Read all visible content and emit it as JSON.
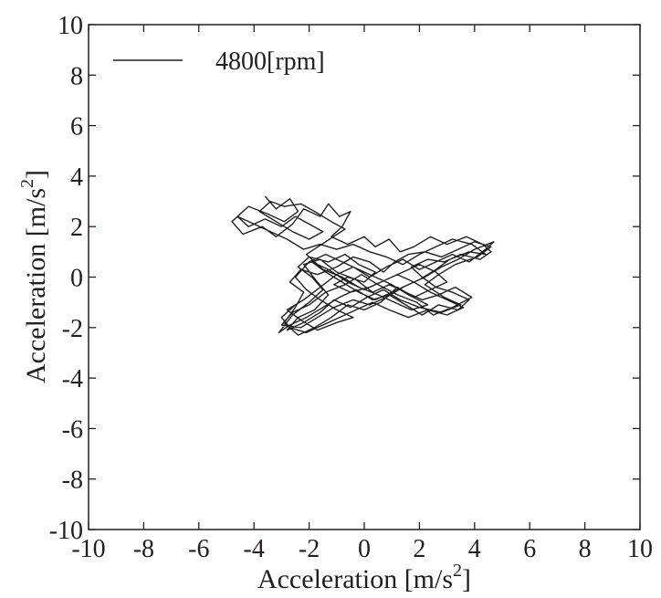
{
  "chart_data": {
    "type": "line",
    "title": "",
    "xlabel": {
      "text": "Acceleration [m/s",
      "sup": "2",
      "close": "]"
    },
    "ylabel": {
      "text": "Acceleration [m/s",
      "sup": "2",
      "close": "]"
    },
    "xlim": [
      -10,
      10
    ],
    "ylim": [
      -10,
      10
    ],
    "xticks": [
      -10,
      -8,
      -6,
      -4,
      -2,
      0,
      2,
      4,
      6,
      8,
      10
    ],
    "yticks": [
      -10,
      -8,
      -6,
      -4,
      -2,
      0,
      2,
      4,
      6,
      8,
      10
    ],
    "grid": false,
    "legend_position": "top-left",
    "series": [
      {
        "name": "4800[rpm]",
        "color": "#231f20",
        "points": [
          [
            -3.6,
            3.2
          ],
          [
            -3.2,
            2.7
          ],
          [
            -2.7,
            3.1
          ],
          [
            -2.4,
            2.6
          ],
          [
            -2.9,
            2.2
          ],
          [
            -3.5,
            2.5
          ],
          [
            -4.2,
            2.8
          ],
          [
            -4.8,
            2.2
          ],
          [
            -4.4,
            1.7
          ],
          [
            -3.7,
            2.0
          ],
          [
            -3.2,
            1.6
          ],
          [
            -2.6,
            2.1
          ],
          [
            -2.2,
            2.7
          ],
          [
            -1.6,
            2.4
          ],
          [
            -1.3,
            2.9
          ],
          [
            -0.9,
            2.4
          ],
          [
            -0.5,
            2.6
          ],
          [
            -0.8,
            2.0
          ],
          [
            -1.2,
            1.6
          ],
          [
            -0.6,
            1.3
          ],
          [
            0.0,
            1.6
          ],
          [
            0.4,
            1.2
          ],
          [
            0.9,
            1.5
          ],
          [
            1.3,
            1.0
          ],
          [
            1.8,
            1.2
          ],
          [
            2.4,
            1.6
          ],
          [
            3.0,
            1.3
          ],
          [
            3.7,
            1.6
          ],
          [
            4.3,
            1.3
          ],
          [
            4.6,
            1.0
          ],
          [
            4.2,
            0.7
          ],
          [
            3.5,
            0.9
          ],
          [
            2.9,
            0.6
          ],
          [
            2.3,
            0.7
          ],
          [
            1.7,
            0.4
          ],
          [
            2.1,
            0.0
          ],
          [
            2.6,
            -0.4
          ],
          [
            3.2,
            -0.6
          ],
          [
            3.8,
            -0.9
          ],
          [
            3.4,
            -1.3
          ],
          [
            2.7,
            -1.1
          ],
          [
            2.1,
            -1.5
          ],
          [
            1.5,
            -1.1
          ],
          [
            0.9,
            -0.7
          ],
          [
            0.3,
            -0.9
          ],
          [
            -0.3,
            -0.5
          ],
          [
            -0.9,
            -0.8
          ],
          [
            -1.5,
            -1.2
          ],
          [
            -2.1,
            -1.6
          ],
          [
            -2.7,
            -1.9
          ],
          [
            -3.1,
            -2.2
          ],
          [
            -2.6,
            -1.5
          ],
          [
            -2.0,
            -1.0
          ],
          [
            -1.5,
            -0.5
          ],
          [
            -1.9,
            0.0
          ],
          [
            -2.4,
            0.4
          ],
          [
            -2.0,
            0.8
          ],
          [
            -1.3,
            0.6
          ],
          [
            -0.7,
            0.9
          ],
          [
            -0.2,
            0.5
          ],
          [
            0.4,
            0.2
          ],
          [
            0.0,
            -0.2
          ],
          [
            -0.6,
            0.0
          ],
          [
            -1.1,
            -0.3
          ],
          [
            -0.5,
            -0.6
          ],
          [
            0.2,
            -0.4
          ],
          [
            0.8,
            -0.1
          ],
          [
            1.4,
            0.2
          ],
          [
            2.0,
            0.5
          ],
          [
            2.6,
            0.2
          ],
          [
            3.0,
            -0.2
          ],
          [
            2.4,
            -0.5
          ],
          [
            1.8,
            -0.8
          ],
          [
            1.2,
            -0.4
          ],
          [
            0.6,
            -1.0
          ],
          [
            0.0,
            -1.3
          ],
          [
            -0.6,
            -1.1
          ],
          [
            -1.2,
            -1.6
          ],
          [
            -1.8,
            -2.0
          ],
          [
            -2.4,
            -2.3
          ],
          [
            -2.9,
            -1.8
          ],
          [
            -2.5,
            -1.2
          ],
          [
            -2.2,
            -0.6
          ],
          [
            -2.7,
            -0.2
          ],
          [
            -2.3,
            0.3
          ],
          [
            -1.7,
            0.1
          ],
          [
            -1.0,
            0.4
          ],
          [
            -0.4,
            0.8
          ],
          [
            0.2,
            0.6
          ],
          [
            0.7,
            0.2
          ],
          [
            1.1,
            0.6
          ],
          [
            1.6,
            0.9
          ],
          [
            2.2,
            1.0
          ],
          [
            2.8,
            0.8
          ],
          [
            3.4,
            1.1
          ],
          [
            4.0,
            1.4
          ],
          [
            4.6,
            1.2
          ],
          [
            4.1,
            0.8
          ],
          [
            3.3,
            0.5
          ],
          [
            2.7,
            0.1
          ],
          [
            2.2,
            -0.3
          ],
          [
            2.9,
            -0.8
          ],
          [
            3.5,
            -1.1
          ],
          [
            2.8,
            -1.4
          ],
          [
            2.0,
            -1.2
          ],
          [
            1.3,
            -0.9
          ],
          [
            0.7,
            -0.5
          ],
          [
            0.1,
            -0.8
          ],
          [
            -0.5,
            -1.2
          ],
          [
            -1.1,
            -0.9
          ],
          [
            -1.6,
            -1.4
          ],
          [
            -2.2,
            -1.8
          ],
          [
            -2.8,
            -2.1
          ],
          [
            -2.4,
            -1.6
          ],
          [
            -1.8,
            -1.3
          ],
          [
            -1.3,
            -0.7
          ],
          [
            -1.7,
            -0.2
          ],
          [
            -2.2,
            0.5
          ],
          [
            -1.6,
            0.7
          ],
          [
            -1.0,
            0.2
          ],
          [
            -0.3,
            -0.1
          ],
          [
            0.3,
            -0.6
          ],
          [
            0.9,
            -0.3
          ],
          [
            1.5,
            -0.6
          ],
          [
            2.1,
            -0.9
          ],
          [
            2.7,
            -0.7
          ],
          [
            3.3,
            -0.4
          ],
          [
            3.9,
            -0.8
          ],
          [
            3.2,
            -1.2
          ],
          [
            2.5,
            -1.5
          ],
          [
            1.9,
            -1.0
          ],
          [
            1.2,
            -0.7
          ],
          [
            0.5,
            -0.3
          ],
          [
            -0.1,
            0.1
          ],
          [
            -0.7,
            -0.3
          ],
          [
            -1.4,
            -0.6
          ],
          [
            -2.0,
            -1.1
          ],
          [
            -2.6,
            -1.4
          ],
          [
            -3.0,
            -1.9
          ],
          [
            -2.3,
            -2.0
          ],
          [
            -1.7,
            -1.6
          ],
          [
            -1.1,
            -1.2
          ],
          [
            -0.4,
            -0.9
          ],
          [
            0.2,
            -1.1
          ],
          [
            0.8,
            -0.8
          ],
          [
            1.4,
            -0.4
          ],
          [
            2.0,
            -0.1
          ],
          [
            2.6,
            0.3
          ],
          [
            3.1,
            0.7
          ],
          [
            3.8,
            1.0
          ],
          [
            4.4,
            0.9
          ],
          [
            3.9,
            1.3
          ],
          [
            3.2,
            1.5
          ],
          [
            2.6,
            1.2
          ],
          [
            2.0,
            0.9
          ],
          [
            1.4,
            0.5
          ],
          [
            0.8,
            0.8
          ],
          [
            0.2,
            1.0
          ],
          [
            -0.4,
            1.3
          ],
          [
            -1.0,
            1.1
          ],
          [
            -1.6,
            1.3
          ],
          [
            -2.2,
            1.1
          ],
          [
            -2.8,
            1.5
          ],
          [
            -3.4,
            1.8
          ],
          [
            -4.0,
            2.1
          ],
          [
            -4.6,
            2.4
          ],
          [
            -4.2,
            2.0
          ],
          [
            -3.6,
            2.3
          ],
          [
            -3.0,
            2.0
          ],
          [
            -2.5,
            2.4
          ],
          [
            -2.0,
            2.1
          ],
          [
            -1.5,
            1.8
          ],
          [
            -2.0,
            1.5
          ],
          [
            -2.6,
            1.8
          ],
          [
            -3.2,
            2.2
          ],
          [
            -3.8,
            2.6
          ],
          [
            -3.4,
            3.0
          ],
          [
            -2.9,
            2.8
          ],
          [
            -2.3,
            2.9
          ],
          [
            -1.8,
            2.6
          ],
          [
            -1.2,
            2.2
          ],
          [
            -0.7,
            1.9
          ],
          [
            -1.4,
            1.4
          ],
          [
            -2.1,
            0.9
          ],
          [
            -1.5,
            0.3
          ],
          [
            -0.8,
            0.0
          ],
          [
            -0.2,
            -0.4
          ],
          [
            0.5,
            -0.7
          ],
          [
            1.1,
            -1.0
          ],
          [
            1.7,
            -1.3
          ],
          [
            2.3,
            -1.1
          ],
          [
            1.6,
            -0.7
          ],
          [
            1.0,
            -0.3
          ],
          [
            0.4,
            0.0
          ],
          [
            -0.2,
            0.3
          ],
          [
            -0.8,
            0.6
          ],
          [
            -1.4,
            0.9
          ],
          [
            -2.0,
            0.6
          ],
          [
            -2.5,
            0.0
          ],
          [
            -2.1,
            -0.5
          ],
          [
            -1.6,
            -0.9
          ],
          [
            -1.0,
            -1.3
          ],
          [
            -0.4,
            -1.6
          ],
          [
            -1.0,
            -1.8
          ],
          [
            -1.7,
            -2.1
          ],
          [
            -2.3,
            -1.7
          ],
          [
            -2.8,
            -1.3
          ],
          [
            -2.2,
            -0.9
          ],
          [
            -1.6,
            -0.4
          ],
          [
            -1.0,
            0.1
          ],
          [
            -0.4,
            0.4
          ],
          [
            0.2,
            0.0
          ],
          [
            0.8,
            0.4
          ],
          [
            1.4,
            0.7
          ],
          [
            2.0,
            0.3
          ],
          [
            2.6,
            0.6
          ],
          [
            3.2,
            0.9
          ],
          [
            3.8,
            0.6
          ],
          [
            4.4,
            1.1
          ],
          [
            4.7,
            1.4
          ],
          [
            4.0,
            1.1
          ],
          [
            3.4,
            0.7
          ],
          [
            2.8,
            0.4
          ],
          [
            2.2,
            0.0
          ],
          [
            1.6,
            -0.3
          ],
          [
            1.0,
            -0.6
          ],
          [
            0.4,
            -0.9
          ],
          [
            -0.2,
            -0.6
          ],
          [
            -0.8,
            -0.2
          ],
          [
            -1.4,
            0.2
          ],
          [
            -1.9,
            0.6
          ],
          [
            -1.3,
            0.3
          ],
          [
            -0.6,
            -0.2
          ],
          [
            0.0,
            -0.5
          ],
          [
            0.6,
            -0.2
          ],
          [
            1.2,
            0.1
          ],
          [
            1.8,
            -0.2
          ],
          [
            2.4,
            -0.6
          ],
          [
            3.0,
            -0.9
          ],
          [
            3.6,
            -1.2
          ],
          [
            3.0,
            -1.5
          ],
          [
            2.3,
            -1.3
          ],
          [
            1.6,
            -1.6
          ],
          [
            0.9,
            -1.3
          ],
          [
            0.3,
            -1.0
          ],
          [
            -0.3,
            -1.3
          ],
          [
            -0.9,
            -1.6
          ],
          [
            -1.5,
            -1.9
          ],
          [
            -2.1,
            -2.2
          ],
          [
            -2.7,
            -2.0
          ],
          [
            -3.0,
            -1.6
          ],
          [
            -2.5,
            -1.1
          ]
        ]
      }
    ]
  }
}
